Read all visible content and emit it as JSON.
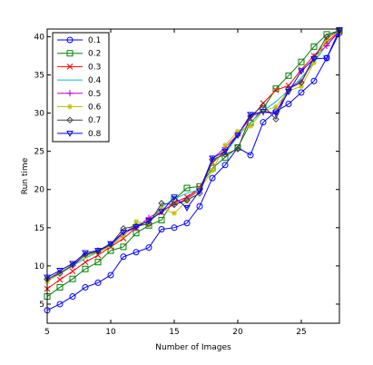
{
  "chart_data": {
    "type": "line",
    "title": "",
    "xlabel": "Number of Images",
    "ylabel": "Run time",
    "xlim": [
      5,
      28
    ],
    "ylim": [
      2.5,
      41
    ],
    "xticks": [
      5,
      10,
      15,
      20,
      25
    ],
    "yticks": [
      5,
      10,
      15,
      20,
      25,
      30,
      35,
      40
    ],
    "grid": false,
    "legend_position": "top-left",
    "x": [
      5,
      6,
      7,
      8,
      9,
      10,
      11,
      12,
      13,
      14,
      15,
      16,
      17,
      18,
      19,
      20,
      21,
      22,
      23,
      24,
      25,
      26,
      27,
      28
    ],
    "series": [
      {
        "name": "0.1",
        "color": "#0000ff",
        "marker": "circle",
        "values": [
          4.2,
          5.0,
          6.0,
          7.2,
          7.8,
          8.8,
          11.2,
          11.8,
          12.4,
          14.8,
          15.0,
          15.6,
          17.8,
          21.5,
          23.2,
          25.5,
          24.5,
          28.8,
          30.2,
          31.2,
          32.7,
          34.2,
          37.2,
          40.5
        ]
      },
      {
        "name": "0.2",
        "color": "#008000",
        "marker": "square",
        "values": [
          6.0,
          7.2,
          8.3,
          9.6,
          10.5,
          12.0,
          12.5,
          14.3,
          15.3,
          16.0,
          18.7,
          20.2,
          20.4,
          22.8,
          24.2,
          25.5,
          28.7,
          30.6,
          33.2,
          34.9,
          36.7,
          38.7,
          40.3,
          40.8
        ]
      },
      {
        "name": "0.3",
        "color": "#ff0000",
        "marker": "x",
        "values": [
          7.0,
          8.2,
          9.3,
          10.5,
          11.4,
          12.5,
          13.6,
          15.0,
          16.0,
          17.0,
          18.3,
          19.0,
          20.2,
          23.5,
          25.0,
          27.3,
          29.3,
          31.3,
          33.0,
          33.6,
          35.7,
          37.5,
          39.3,
          40.7
        ]
      },
      {
        "name": "0.4",
        "color": "#00bfbf",
        "marker": "none",
        "values": [
          8.0,
          9.0,
          10.0,
          11.0,
          11.8,
          12.7,
          14.0,
          15.4,
          15.8,
          17.7,
          18.8,
          19.5,
          20.0,
          23.7,
          24.7,
          27.0,
          28.8,
          30.3,
          31.5,
          33.0,
          34.6,
          36.6,
          39.0,
          40.6
        ]
      },
      {
        "name": "0.5",
        "color": "#bf00bf",
        "marker": "plus",
        "values": [
          8.2,
          9.2,
          10.0,
          11.4,
          12.0,
          12.8,
          14.3,
          15.0,
          16.3,
          17.3,
          18.0,
          18.8,
          20.0,
          24.0,
          25.5,
          27.2,
          29.6,
          30.1,
          30.0,
          33.3,
          34.1,
          37.4,
          38.8,
          40.8
        ]
      },
      {
        "name": "0.6",
        "color": "#bfbf00",
        "marker": "star",
        "values": [
          8.0,
          9.1,
          10.2,
          11.3,
          11.8,
          12.6,
          14.0,
          15.8,
          15.5,
          17.5,
          16.9,
          18.5,
          20.0,
          22.5,
          25.8,
          27.6,
          28.3,
          30.3,
          30.8,
          32.9,
          33.5,
          36.6,
          39.7,
          40.8
        ]
      },
      {
        "name": "0.7",
        "color": "#404040",
        "marker": "diamond",
        "values": [
          8.3,
          9.0,
          10.1,
          11.5,
          11.9,
          12.8,
          14.9,
          15.2,
          15.5,
          18.2,
          18.0,
          18.6,
          19.5,
          23.9,
          24.6,
          25.3,
          29.6,
          31.0,
          29.2,
          33.2,
          34.0,
          37.2,
          40.0,
          40.8
        ]
      },
      {
        "name": "0.8",
        "color": "#0000ff",
        "marker": "triangle-down",
        "values": [
          8.5,
          9.4,
          10.3,
          11.7,
          12.0,
          12.9,
          14.4,
          15.1,
          15.9,
          17.1,
          19.0,
          17.6,
          19.8,
          24.1,
          25.0,
          27.1,
          29.8,
          30.2,
          30.0,
          32.8,
          35.5,
          37.1,
          37.2,
          40.9
        ]
      }
    ]
  }
}
